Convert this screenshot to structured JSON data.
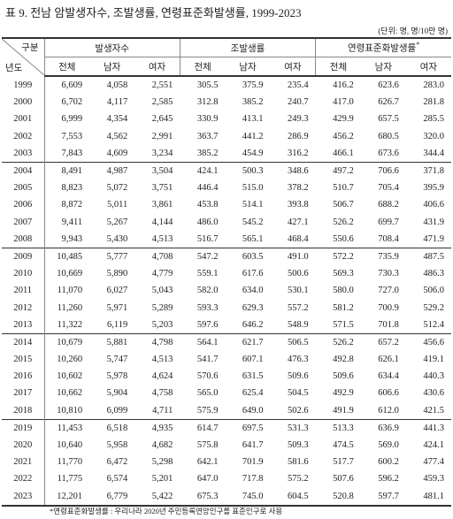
{
  "title": "표 9. 전남 암발생자수, 조발생률, 연령표준화발생률, 1999-2023",
  "unit": "(단위: 명, 명/10만 명)",
  "header": {
    "corner_top": "구분",
    "corner_bottom": "년도",
    "groups": [
      "발생자수",
      "조발생률",
      "연령표준화발생률"
    ],
    "group_note": "*",
    "columns": [
      "전체",
      "남자",
      "여자",
      "전체",
      "남자",
      "여자",
      "전체",
      "남자",
      "여자"
    ]
  },
  "rows": [
    [
      "1999",
      "6,609",
      "4,058",
      "2,551",
      "305.5",
      "375.9",
      "235.4",
      "416.2",
      "623.6",
      "283.0"
    ],
    [
      "2000",
      "6,702",
      "4,117",
      "2,585",
      "312.8",
      "385.2",
      "240.7",
      "417.0",
      "626.7",
      "281.8"
    ],
    [
      "2001",
      "6,999",
      "4,354",
      "2,645",
      "330.9",
      "413.1",
      "249.3",
      "429.9",
      "657.5",
      "285.5"
    ],
    [
      "2002",
      "7,553",
      "4,562",
      "2,991",
      "363.7",
      "441.2",
      "286.9",
      "456.2",
      "680.5",
      "320.0"
    ],
    [
      "2003",
      "7,843",
      "4,609",
      "3,234",
      "385.2",
      "454.9",
      "316.2",
      "466.1",
      "673.6",
      "344.4"
    ],
    [
      "2004",
      "8,491",
      "4,987",
      "3,504",
      "424.1",
      "500.3",
      "348.6",
      "497.2",
      "706.6",
      "371.8"
    ],
    [
      "2005",
      "8,823",
      "5,072",
      "3,751",
      "446.4",
      "515.0",
      "378.2",
      "510.7",
      "705.4",
      "395.9"
    ],
    [
      "2006",
      "8,872",
      "5,011",
      "3,861",
      "453.8",
      "514.1",
      "393.8",
      "506.7",
      "688.2",
      "406.6"
    ],
    [
      "2007",
      "9,411",
      "5,267",
      "4,144",
      "486.0",
      "545.2",
      "427.1",
      "526.2",
      "699.7",
      "431.9"
    ],
    [
      "2008",
      "9,943",
      "5,430",
      "4,513",
      "516.7",
      "565.1",
      "468.4",
      "550.6",
      "708.4",
      "471.9"
    ],
    [
      "2009",
      "10,485",
      "5,777",
      "4,708",
      "547.2",
      "603.5",
      "491.0",
      "572.2",
      "735.9",
      "487.5"
    ],
    [
      "2010",
      "10,669",
      "5,890",
      "4,779",
      "559.1",
      "617.6",
      "500.6",
      "569.3",
      "730.3",
      "486.3"
    ],
    [
      "2011",
      "11,070",
      "6,027",
      "5,043",
      "582.0",
      "634.0",
      "530.1",
      "580.0",
      "727.0",
      "506.0"
    ],
    [
      "2012",
      "11,260",
      "5,971",
      "5,289",
      "593.3",
      "629.3",
      "557.2",
      "581.2",
      "700.9",
      "529.2"
    ],
    [
      "2013",
      "11,322",
      "6,119",
      "5,203",
      "597.6",
      "646.2",
      "548.9",
      "571.5",
      "701.8",
      "512.4"
    ],
    [
      "2014",
      "10,679",
      "5,881",
      "4,798",
      "564.1",
      "621.7",
      "506.5",
      "526.2",
      "657.2",
      "456.6"
    ],
    [
      "2015",
      "10,260",
      "5,747",
      "4,513",
      "541.7",
      "607.1",
      "476.3",
      "492.8",
      "626.1",
      "419.1"
    ],
    [
      "2016",
      "10,602",
      "5,978",
      "4,624",
      "570.6",
      "631.5",
      "509.6",
      "509.6",
      "634.4",
      "440.3"
    ],
    [
      "2017",
      "10,662",
      "5,904",
      "4,758",
      "565.0",
      "625.4",
      "504.5",
      "492.9",
      "606.6",
      "430.6"
    ],
    [
      "2018",
      "10,810",
      "6,099",
      "4,711",
      "575.9",
      "649.0",
      "502.6",
      "491.9",
      "612.0",
      "421.5"
    ],
    [
      "2019",
      "11,453",
      "6,518",
      "4,935",
      "614.7",
      "697.5",
      "531.3",
      "513.3",
      "636.9",
      "441.3"
    ],
    [
      "2020",
      "10,640",
      "5,958",
      "4,682",
      "575.8",
      "641.7",
      "509.3",
      "474.5",
      "569.0",
      "424.1"
    ],
    [
      "2021",
      "11,770",
      "6,472",
      "5,298",
      "642.1",
      "701.9",
      "581.6",
      "517.7",
      "600.2",
      "477.4"
    ],
    [
      "2022",
      "11,775",
      "6,574",
      "5,201",
      "647.0",
      "717.8",
      "575.2",
      "507.6",
      "596.2",
      "459.3"
    ],
    [
      "2023",
      "12,201",
      "6,779",
      "5,422",
      "675.3",
      "745.0",
      "604.5",
      "520.8",
      "597.7",
      "481.1"
    ]
  ],
  "footnote": "*연령표준화발생률 : 우리나라 2020년 주민등록연앙인구를 표준인구로 사용"
}
